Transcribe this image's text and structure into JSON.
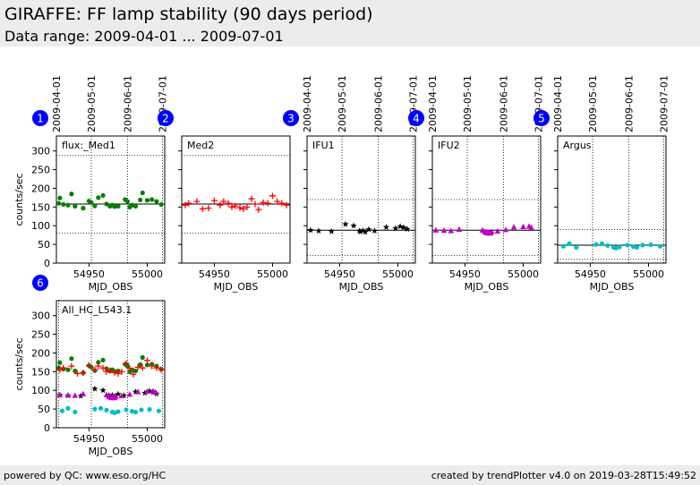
{
  "header": {
    "title": "GIRAFFE: FF lamp stability (90 days period)",
    "subtitle": "Data range: 2009-04-01 ... 2009-07-01"
  },
  "footer": {
    "left": "powered by QC: www.eso.org/HC",
    "right": "created by trendPlotter v4.0 on 2019-03-28T15:49:52"
  },
  "colors": {
    "green": "#008000",
    "red": "#ff0000",
    "black": "#000000",
    "magenta": "#c000c0",
    "cyan": "#00bfbf",
    "badge": "#0000ff"
  },
  "chart_data": [
    {
      "id": 1,
      "type": "scatter",
      "label": "flux:_Med1",
      "xlabel": "MJD_OBS",
      "ylabel": "counts/sec",
      "xlim": [
        54922,
        55015
      ],
      "ylim": [
        0,
        340
      ],
      "xticks": [
        54950,
        55000
      ],
      "yticks": [
        0,
        50,
        100,
        150,
        200,
        250,
        300
      ],
      "date_ticks": [
        {
          "label": "2009-04-01",
          "x": 54922
        },
        {
          "label": "2009-05-01",
          "x": 54952
        },
        {
          "label": "2009-06-01",
          "x": 54983
        },
        {
          "label": "2009-07-01",
          "x": 55013
        }
      ],
      "ref_lines": {
        "mean": 158,
        "bounds": [
          288,
          80
        ]
      },
      "series": [
        {
          "marker": "circle",
          "color": "green",
          "x": [
            54924,
            54925,
            54928,
            54932,
            54935,
            54938,
            54945,
            54950,
            54952,
            54955,
            54958,
            54962,
            54965,
            54968,
            54970,
            54972,
            54975,
            54981,
            54983,
            54985,
            54987,
            54990,
            54994,
            54996,
            55000,
            55004,
            55008,
            55012
          ],
          "y": [
            160,
            174,
            157,
            155,
            185,
            152,
            147,
            166,
            162,
            153,
            175,
            181,
            158,
            152,
            155,
            151,
            152,
            170,
            165,
            150,
            155,
            152,
            169,
            188,
            168,
            170,
            165,
            157
          ]
        }
      ]
    },
    {
      "id": 2,
      "type": "scatter",
      "label": "Med2",
      "xlabel": "MJD_OBS",
      "ylabel": "",
      "xlim": [
        54922,
        55015
      ],
      "ylim": [
        0,
        340
      ],
      "xticks": [
        54950,
        55000
      ],
      "yticks": [
        0,
        50,
        100,
        150,
        200,
        250,
        300
      ],
      "date_ticks": [],
      "ref_lines": {
        "mean": 158,
        "bounds": [
          288,
          80
        ]
      },
      "series": [
        {
          "marker": "plus",
          "color": "red",
          "x": [
            54925,
            54928,
            54935,
            54940,
            54945,
            54950,
            54955,
            54958,
            54962,
            54965,
            54968,
            54972,
            54975,
            54978,
            54982,
            54985,
            54988,
            54992,
            54996,
            55000,
            55004,
            55008,
            55012
          ],
          "y": [
            155,
            160,
            165,
            145,
            147,
            167,
            155,
            165,
            160,
            150,
            153,
            148,
            145,
            150,
            172,
            158,
            143,
            162,
            160,
            180,
            165,
            160,
            155
          ]
        }
      ]
    },
    {
      "id": 3,
      "type": "scatter",
      "label": "IFU1",
      "xlabel": "MJD_OBS",
      "ylabel": "",
      "xlim": [
        54922,
        55015
      ],
      "ylim": [
        0,
        340
      ],
      "xticks": [
        54950,
        55000
      ],
      "yticks": [
        0,
        50,
        100,
        150,
        200,
        250,
        300
      ],
      "date_ticks": [
        {
          "label": "2009-04-01",
          "x": 54922
        },
        {
          "label": "2009-05-01",
          "x": 54952
        },
        {
          "label": "2009-06-01",
          "x": 54983
        },
        {
          "label": "2009-07-01",
          "x": 55013
        }
      ],
      "ref_lines": {
        "mean": 88,
        "bounds": [
          170,
          20
        ]
      },
      "series": [
        {
          "marker": "star",
          "color": "black",
          "x": [
            54925,
            54932,
            54943,
            54955,
            54962,
            54967,
            54968,
            54970,
            54972,
            54975,
            54980,
            54990,
            54998,
            55002,
            55005,
            55008
          ],
          "y": [
            88,
            86,
            85,
            104,
            100,
            86,
            84,
            87,
            83,
            90,
            86,
            96,
            93,
            98,
            95,
            91
          ]
        }
      ]
    },
    {
      "id": 4,
      "type": "scatter",
      "label": "IFU2",
      "xlabel": "MJD_OBS",
      "ylabel": "",
      "xlim": [
        54922,
        55015
      ],
      "ylim": [
        0,
        340
      ],
      "xticks": [
        54950,
        55000
      ],
      "yticks": [
        0,
        50,
        100,
        150,
        200,
        250,
        300
      ],
      "date_ticks": [
        {
          "label": "2009-04-01",
          "x": 54922
        },
        {
          "label": "2009-05-01",
          "x": 54952
        },
        {
          "label": "2009-06-01",
          "x": 54983
        },
        {
          "label": "2009-07-01",
          "x": 55013
        }
      ],
      "ref_lines": {
        "mean": 88,
        "bounds": [
          170,
          20
        ]
      },
      "series": [
        {
          "marker": "triangle",
          "color": "magenta",
          "x": [
            54925,
            54932,
            54938,
            54945,
            54965,
            54967,
            54968,
            54969,
            54970,
            54971,
            54972,
            54973,
            54978,
            54985,
            54992,
            55000,
            55005,
            55007
          ],
          "y": [
            88,
            87,
            86,
            90,
            88,
            84,
            82,
            81,
            80,
            82,
            80,
            84,
            85,
            89,
            96,
            97,
            98,
            95
          ]
        }
      ]
    },
    {
      "id": 5,
      "type": "scatter",
      "label": "Argus",
      "xlabel": "MJD_OBS",
      "ylabel": "",
      "xlim": [
        54922,
        55015
      ],
      "ylim": [
        0,
        340
      ],
      "xticks": [
        54950,
        55000
      ],
      "yticks": [
        0,
        50,
        100,
        150,
        200,
        250,
        300
      ],
      "date_ticks": [
        {
          "label": "2009-04-01",
          "x": 54922
        },
        {
          "label": "2009-05-01",
          "x": 54952
        },
        {
          "label": "2009-06-01",
          "x": 54983
        },
        {
          "label": "2009-07-01",
          "x": 55013
        }
      ],
      "ref_lines": {
        "mean": 48,
        "bounds": [
          90,
          10
        ]
      },
      "series": [
        {
          "marker": "circle",
          "color": "cyan",
          "x": [
            54927,
            54932,
            54938,
            54955,
            54960,
            54965,
            54970,
            54972,
            54975,
            54982,
            54987,
            54990,
            54995,
            55002,
            55010
          ],
          "y": [
            45,
            52,
            42,
            50,
            52,
            47,
            42,
            40,
            43,
            48,
            44,
            42,
            48,
            49,
            45
          ]
        }
      ]
    },
    {
      "id": 6,
      "type": "scatter",
      "label": "All_HC_L543.1",
      "xlabel": "MJD_OBS",
      "ylabel": "counts/sec",
      "xlim": [
        54922,
        55015
      ],
      "ylim": [
        0,
        340
      ],
      "xticks": [
        54950,
        55000
      ],
      "yticks": [
        0,
        50,
        100,
        150,
        200,
        250,
        300
      ],
      "date_ticks": [],
      "ref_lines": {
        "mean": null,
        "bounds": []
      },
      "vlines": [
        54924,
        54952,
        54983,
        55013
      ],
      "series": [
        {
          "marker": "circle",
          "color": "green",
          "x": [
            54924,
            54925,
            54928,
            54932,
            54935,
            54938,
            54945,
            54950,
            54952,
            54955,
            54958,
            54962,
            54965,
            54968,
            54970,
            54972,
            54975,
            54981,
            54983,
            54985,
            54987,
            54990,
            54994,
            54996,
            55000,
            55004,
            55008,
            55012
          ],
          "y": [
            160,
            174,
            157,
            155,
            185,
            152,
            147,
            166,
            162,
            153,
            175,
            181,
            158,
            152,
            155,
            151,
            152,
            170,
            165,
            150,
            155,
            152,
            169,
            188,
            168,
            170,
            165,
            157
          ]
        },
        {
          "marker": "plus",
          "color": "red",
          "x": [
            54925,
            54928,
            54935,
            54940,
            54945,
            54950,
            54955,
            54958,
            54962,
            54965,
            54968,
            54972,
            54975,
            54978,
            54982,
            54985,
            54988,
            54992,
            54996,
            55000,
            55004,
            55008,
            55012
          ],
          "y": [
            155,
            160,
            165,
            145,
            147,
            167,
            155,
            165,
            160,
            150,
            153,
            148,
            145,
            150,
            172,
            158,
            143,
            162,
            160,
            180,
            165,
            160,
            155
          ]
        },
        {
          "marker": "star",
          "color": "black",
          "x": [
            54925,
            54932,
            54943,
            54955,
            54962,
            54967,
            54968,
            54970,
            54972,
            54975,
            54980,
            54990,
            54998,
            55002,
            55005,
            55008
          ],
          "y": [
            88,
            86,
            85,
            104,
            100,
            86,
            84,
            87,
            83,
            90,
            86,
            96,
            93,
            98,
            95,
            91
          ]
        },
        {
          "marker": "triangle",
          "color": "magenta",
          "x": [
            54925,
            54932,
            54938,
            54945,
            54965,
            54967,
            54968,
            54969,
            54970,
            54971,
            54972,
            54973,
            54978,
            54985,
            54992,
            55000,
            55005,
            55007
          ],
          "y": [
            88,
            87,
            86,
            90,
            88,
            84,
            82,
            81,
            80,
            82,
            80,
            84,
            85,
            89,
            96,
            97,
            98,
            95
          ]
        },
        {
          "marker": "circle",
          "color": "cyan",
          "x": [
            54927,
            54932,
            54938,
            54955,
            54960,
            54965,
            54970,
            54972,
            54975,
            54982,
            54987,
            54990,
            54995,
            55002,
            55010
          ],
          "y": [
            45,
            52,
            42,
            50,
            52,
            47,
            42,
            40,
            43,
            48,
            44,
            42,
            48,
            49,
            45
          ]
        }
      ]
    }
  ]
}
